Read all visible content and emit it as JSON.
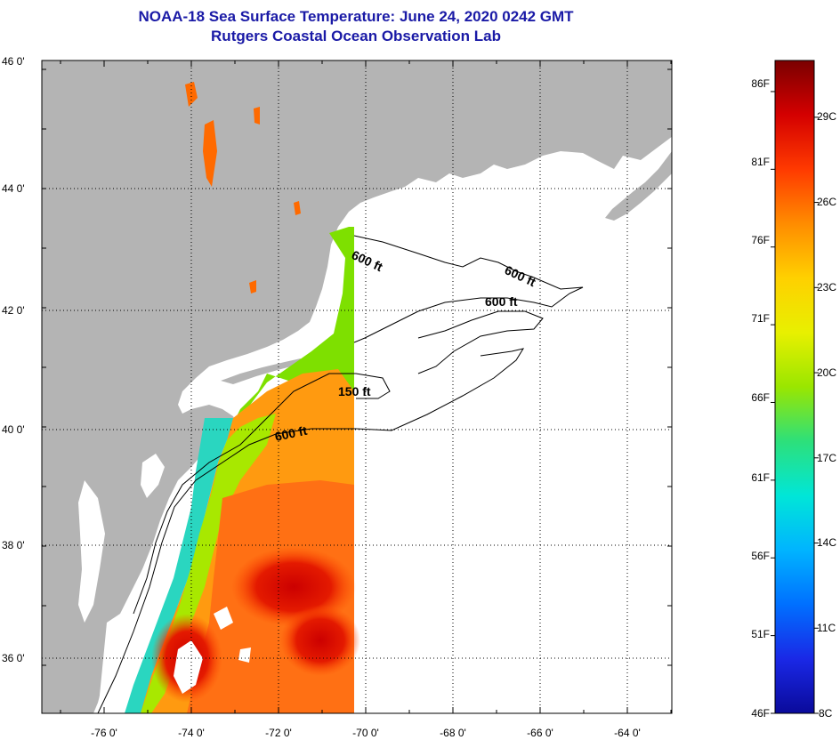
{
  "title": {
    "line1": "NOAA-18 Sea Surface Temperature:  June 24, 2020 0242 GMT",
    "line2": "Rutgers Coastal Ocean Observation Lab"
  },
  "map": {
    "lat_labels": [
      "46 0'",
      "44 0'",
      "42 0'",
      "40 0'",
      "38 0'",
      "36 0'"
    ],
    "lon_labels": [
      "-76 0'",
      "-74 0'",
      "-72 0'",
      "-70 0'",
      "-68 0'",
      "-66 0'",
      "-64 0'"
    ],
    "contour_labels": [
      "600 ft",
      "600 ft",
      "600 ft",
      "150 ft",
      "600 ft"
    ],
    "colors": {
      "land": "#b4b4b4",
      "no_data": "#ffffff",
      "grid": "#000000"
    }
  },
  "colorbar": {
    "fahrenheit_labels": [
      "86F",
      "81F",
      "76F",
      "71F",
      "66F",
      "61F",
      "56F",
      "51F",
      "46F"
    ],
    "celsius_labels": [
      "29C",
      "26C",
      "23C",
      "20C",
      "17C",
      "14C",
      "11C",
      "8C"
    ],
    "range_f": [
      46,
      88
    ],
    "range_c": [
      8,
      31
    ],
    "stops": [
      "#7a0000",
      "#d40000",
      "#ff3a00",
      "#ff8c00",
      "#ffd000",
      "#e8f000",
      "#9ae600",
      "#2de07a",
      "#00e6d8",
      "#00b4ff",
      "#0070ff",
      "#1a28e6",
      "#0a0a9a"
    ]
  }
}
